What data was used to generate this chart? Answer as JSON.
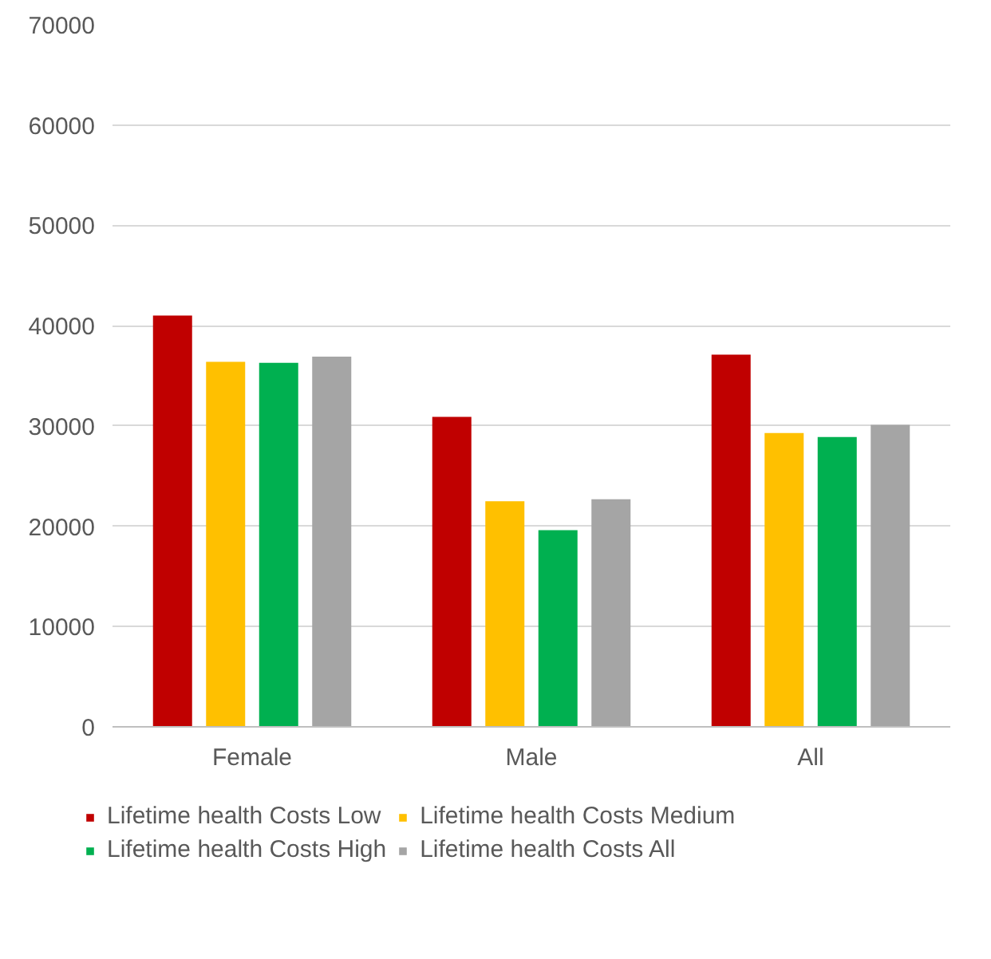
{
  "chart_data": {
    "type": "bar",
    "categories": [
      "Female",
      "Male",
      "All"
    ],
    "series": [
      {
        "name": "Lifetime health Costs Low",
        "color": "#c00000",
        "values": [
          41000,
          30900,
          37100
        ]
      },
      {
        "name": "Lifetime health Costs Medium",
        "color": "#ffc000",
        "values": [
          36400,
          22500,
          29300
        ]
      },
      {
        "name": "Lifetime health Costs High",
        "color": "#00b050",
        "values": [
          36300,
          19600,
          28900
        ]
      },
      {
        "name": "Lifetime health Costs All",
        "color": "#a5a5a5",
        "values": [
          36900,
          22700,
          30100
        ]
      }
    ],
    "ylim": [
      0,
      70000
    ],
    "yticks": [
      0,
      10000,
      20000,
      30000,
      40000,
      50000,
      60000,
      70000
    ],
    "grid": "y",
    "legend": "bottom"
  }
}
